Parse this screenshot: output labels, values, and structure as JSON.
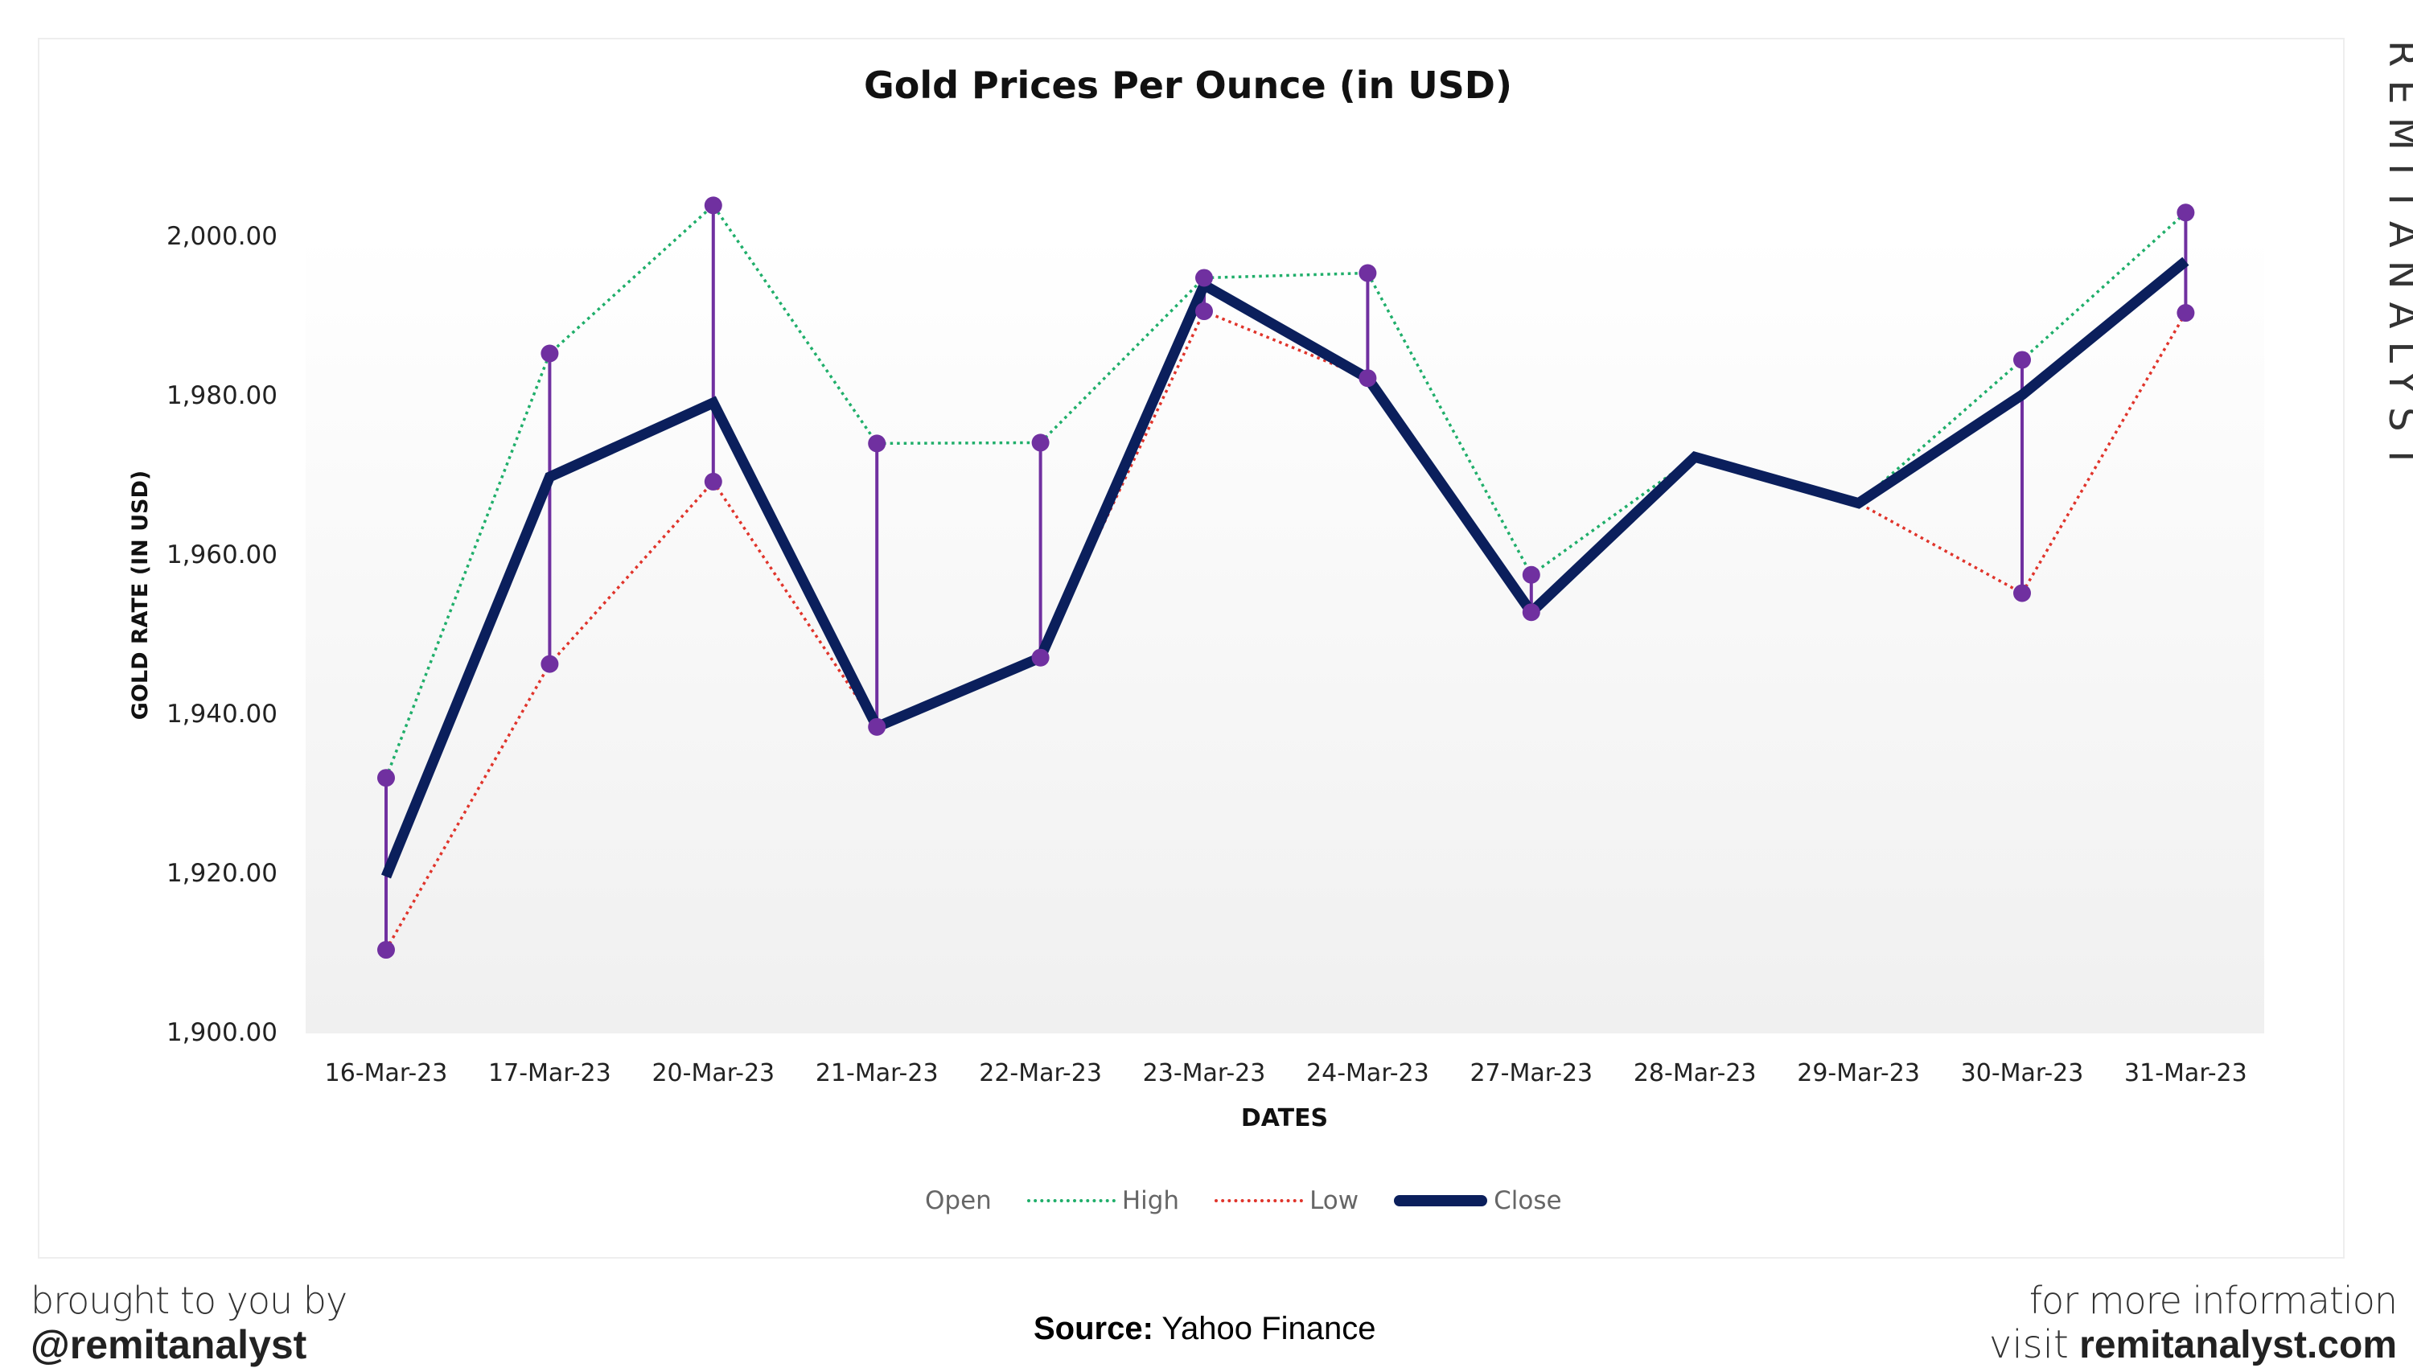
{
  "chart_data": {
    "type": "line",
    "title": "Gold Prices Per Ounce (in USD)",
    "xlabel": "DATES",
    "ylabel": "GOLD RATE (IN USD)",
    "ylim": [
      1900,
      2000
    ],
    "yticks": [
      "1,900.00",
      "1,920.00",
      "1,940.00",
      "1,960.00",
      "1,980.00",
      "2,000.00"
    ],
    "ytick_values": [
      1900,
      1920,
      1940,
      1960,
      1980,
      2000
    ],
    "grid": false,
    "legend_position": "bottom",
    "categories": [
      "16-Mar-23",
      "17-Mar-23",
      "20-Mar-23",
      "21-Mar-23",
      "22-Mar-23",
      "23-Mar-23",
      "24-Mar-23",
      "27-Mar-23",
      "28-Mar-23",
      "29-Mar-23",
      "30-Mar-23",
      "31-Mar-23"
    ],
    "series": [
      {
        "name": "Open",
        "style": "none",
        "color": "#7030a0",
        "values": [
          null,
          null,
          null,
          null,
          null,
          null,
          null,
          null,
          null,
          null,
          null,
          null
        ]
      },
      {
        "name": "High",
        "style": "dotted",
        "color": "#1fae6a",
        "values": [
          1931.9,
          1985.2,
          2003.8,
          1973.9,
          1974.0,
          1994.7,
          1995.3,
          1957.4,
          1972.2,
          1966.4,
          1984.4,
          2002.9
        ]
      },
      {
        "name": "Low",
        "style": "dotted",
        "color": "#e0342b",
        "values": [
          1910.3,
          1946.2,
          1969.1,
          1938.3,
          1947.0,
          1990.5,
          1982.1,
          1952.7,
          1972.2,
          1966.4,
          1955.1,
          1990.3
        ]
      },
      {
        "name": "Close",
        "style": "solid-thick",
        "color": "#0b1f5c",
        "values": [
          1919.5,
          1969.7,
          1979.0,
          1938.3,
          1947.0,
          1993.8,
          1982.1,
          1952.7,
          1972.2,
          1966.4,
          1980.0,
          1996.8
        ]
      }
    ],
    "hi_lo_markers": {
      "color": "#7030a0",
      "show_on": [
        0,
        1,
        2,
        3,
        4,
        5,
        6,
        7,
        10,
        11
      ]
    }
  },
  "watermark": "REMITANALYST",
  "footer": {
    "left_line1": "brought to you by",
    "left_line2": "@remitanalyst",
    "source_label": "Source:",
    "source_value": "Yahoo Finance",
    "right_line1": "for more information",
    "right_prefix": "visit",
    "right_site": "remitanalyst.com"
  }
}
